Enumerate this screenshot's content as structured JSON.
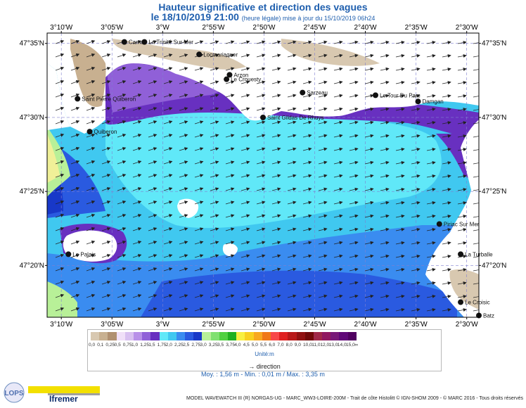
{
  "title": "Hauteur significative et direction des vagues",
  "subtitle_date": "le 18/10/2019 21:00",
  "subtitle_note": "(heure légale) mise à jour du 15/10/2019 06h24",
  "axes": {
    "lon_labels": [
      "3°10'W",
      "3°05'W",
      "3°W",
      "2°55'W",
      "2°50'W",
      "2°45'W",
      "2°40'W",
      "2°35'W",
      "2°30'W"
    ],
    "lat_labels": [
      "47°35'N",
      "47°30'N",
      "47°25'N",
      "47°20'N"
    ]
  },
  "places": [
    {
      "name": "Carnac",
      "lon": -3.063,
      "lat": 47.585
    },
    {
      "name": "La Trinité Sur Mer",
      "lon": -3.03,
      "lat": 47.585
    },
    {
      "name": "Locmariaquer",
      "lon": -2.94,
      "lat": 47.571
    },
    {
      "name": "Le Crouesty",
      "lon": -2.895,
      "lat": 47.543
    },
    {
      "name": "Arzon",
      "lon": -2.89,
      "lat": 47.548
    },
    {
      "name": "Sarzeau",
      "lon": -2.77,
      "lat": 47.528
    },
    {
      "name": "Saint Pierre Quiberon",
      "lon": -3.14,
      "lat": 47.521
    },
    {
      "name": "Saint Gildas De Rhuys",
      "lon": -2.835,
      "lat": 47.5
    },
    {
      "name": "Le Tour Du Parc",
      "lon": -2.65,
      "lat": 47.525
    },
    {
      "name": "Damgan",
      "lon": -2.58,
      "lat": 47.518
    },
    {
      "name": "Quiberon",
      "lon": -3.12,
      "lat": 47.484
    },
    {
      "name": "Piriac Sur Mer",
      "lon": -2.545,
      "lat": 47.38
    },
    {
      "name": "La Turballe",
      "lon": -2.51,
      "lat": 47.346
    },
    {
      "name": "Le Palais",
      "lon": -3.155,
      "lat": 47.346
    },
    {
      "name": "Le Croisic",
      "lon": -2.51,
      "lat": 47.292
    },
    {
      "name": "Batz",
      "lon": -2.48,
      "lat": 47.277
    }
  ],
  "legend": {
    "levels": [
      "0,0",
      "0,1",
      "0,25",
      "0,5",
      "0,75",
      "1,0",
      "1,25",
      "1,5",
      "1,75",
      "2,0",
      "2,25",
      "2,5",
      "2,75",
      "3,0",
      "3,25",
      "3,5",
      "3,75",
      "4,0",
      "4,5",
      "5,0",
      "5,5",
      "6,0",
      "7,0",
      "8,0",
      "9,0",
      "10,0",
      "11,0",
      "12,0",
      "13,0",
      "14,0",
      "15,0",
      "∞"
    ],
    "colors": [
      "#d8c8b0",
      "#c8b090",
      "#b09070",
      "#f0e0f8",
      "#d8c0f0",
      "#b890e8",
      "#9060d8",
      "#6830c0",
      "#60e8f8",
      "#40c8f0",
      "#3a8cf0",
      "#2a5ae0",
      "#1838c8",
      "#b8f098",
      "#80e070",
      "#50d040",
      "#20b020",
      "#f8f040",
      "#f8d020",
      "#f8a820",
      "#f07818",
      "#f84848",
      "#e02020",
      "#b81818",
      "#901010",
      "#700808",
      "#a02848",
      "#901860",
      "#781878",
      "#600878",
      "#500060"
    ],
    "units": "Unité:m",
    "direction": "direction"
  },
  "stats": "Moy. : 1,56 m  -  Min. : 0,01 m / Max. : 3,35 m",
  "credits": "MODEL WAVEWATCH III (R) NORGAS-UG - MARC_WW3-LOIRE-200M - Trait de côte Histolitt © IGN-SHOM 2009 - © MARC 2016 - Tous droits réservés",
  "logos": {
    "lops": "LOPS",
    "ifremer": "Ifremer"
  },
  "colors": {
    "title": "#1f5fae"
  }
}
